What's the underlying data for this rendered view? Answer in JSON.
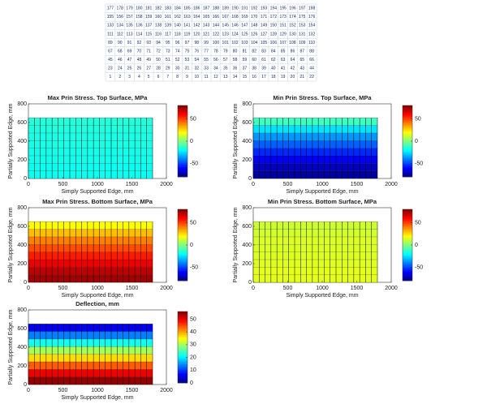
{
  "node_grid": {
    "rows": [
      [
        177,
        178,
        179,
        180,
        181,
        182,
        183,
        184,
        185,
        186,
        187,
        188,
        189,
        190,
        191,
        192,
        193,
        194,
        195,
        196,
        197,
        198
      ],
      [
        155,
        156,
        157,
        158,
        159,
        160,
        161,
        162,
        163,
        164,
        165,
        166,
        167,
        168,
        169,
        170,
        171,
        172,
        173,
        174,
        175,
        176
      ],
      [
        133,
        134,
        135,
        136,
        137,
        138,
        139,
        140,
        141,
        142,
        143,
        144,
        145,
        146,
        147,
        148,
        149,
        150,
        151,
        152,
        153,
        154
      ],
      [
        111,
        112,
        113,
        114,
        115,
        116,
        117,
        118,
        119,
        120,
        121,
        122,
        123,
        124,
        125,
        126,
        127,
        128,
        129,
        130,
        131,
        132
      ],
      [
        89,
        90,
        91,
        92,
        93,
        94,
        95,
        96,
        97,
        98,
        99,
        100,
        101,
        102,
        103,
        104,
        105,
        106,
        107,
        108,
        109,
        110
      ],
      [
        67,
        68,
        69,
        70,
        71,
        72,
        73,
        74,
        75,
        76,
        77,
        78,
        79,
        80,
        81,
        82,
        83,
        84,
        85,
        86,
        87,
        88
      ],
      [
        45,
        46,
        47,
        48,
        49,
        50,
        51,
        52,
        53,
        54,
        55,
        56,
        57,
        58,
        59,
        60,
        61,
        62,
        63,
        64,
        65,
        66
      ],
      [
        23,
        24,
        25,
        26,
        27,
        28,
        29,
        30,
        31,
        32,
        33,
        34,
        35,
        36,
        37,
        38,
        39,
        40,
        41,
        42,
        43,
        44
      ],
      [
        1,
        2,
        3,
        4,
        5,
        6,
        7,
        8,
        9,
        10,
        11,
        12,
        13,
        14,
        15,
        16,
        17,
        18,
        19,
        20,
        21,
        22
      ]
    ]
  },
  "chart_data": [
    {
      "type": "heatmap",
      "title": "Max Prin Stress. Top Surface, MPa",
      "xlabel": "Simply Supported Edge, mm",
      "ylabel": "Partially Supported Edge, mm",
      "xlim": [
        0,
        2000
      ],
      "xticks": [
        0,
        500,
        1000,
        1500,
        2000
      ],
      "ylim": [
        0,
        800
      ],
      "yticks": [
        0,
        200,
        400,
        600,
        800
      ],
      "extent_x": [
        0,
        1800
      ],
      "extent_y": [
        0,
        650
      ],
      "clim": [
        -80,
        80
      ],
      "cticks": [
        -50,
        0,
        50
      ],
      "values": [
        -18,
        -18,
        -17,
        -17,
        -16,
        -16,
        -15,
        -14
      ]
    },
    {
      "type": "heatmap",
      "title": "Min Prin Stress. Top Surface, MPa",
      "xlabel": "Simply Supported Edge, mm",
      "ylabel": "Partially Supported Edge, mm",
      "xlim": [
        0,
        2000
      ],
      "xticks": [
        0,
        500,
        1000,
        1500,
        2000
      ],
      "ylim": [
        0,
        800
      ],
      "yticks": [
        0,
        200,
        400,
        600,
        800
      ],
      "extent_x": [
        0,
        1800
      ],
      "extent_y": [
        0,
        650
      ],
      "clim": [
        -80,
        80
      ],
      "cticks": [
        -50,
        0,
        50
      ],
      "values": [
        -75,
        -70,
        -62,
        -54,
        -45,
        -36,
        -24,
        -10
      ]
    },
    {
      "type": "heatmap",
      "title": "Max Prin Stress. Bottom Surface, MPa",
      "xlabel": "Simply Supported Edge, mm",
      "ylabel": "Partially Supported Edge, mm",
      "xlim": [
        0,
        2000
      ],
      "xticks": [
        0,
        500,
        1000,
        1500,
        2000
      ],
      "ylim": [
        0,
        800
      ],
      "yticks": [
        0,
        200,
        400,
        600,
        800
      ],
      "extent_x": [
        0,
        1800
      ],
      "extent_y": [
        0,
        650
      ],
      "clim": [
        -80,
        80
      ],
      "cticks": [
        -50,
        0,
        50
      ],
      "values": [
        75,
        70,
        63,
        56,
        48,
        40,
        30,
        20
      ]
    },
    {
      "type": "heatmap",
      "title": "Min Prin Stress. Bottom Surface, MPa",
      "xlabel": "Simply Supported Edge, mm",
      "ylabel": "Partially Supported Edge, mm",
      "xlim": [
        0,
        2000
      ],
      "xticks": [
        0,
        500,
        1000,
        1500,
        2000
      ],
      "ylim": [
        0,
        800
      ],
      "yticks": [
        0,
        200,
        400,
        600,
        800
      ],
      "extent_x": [
        0,
        1800
      ],
      "extent_y": [
        0,
        650
      ],
      "clim": [
        -80,
        80
      ],
      "cticks": [
        -50,
        0,
        50
      ],
      "values": [
        16,
        16,
        15,
        15,
        14,
        14,
        13,
        12
      ]
    },
    {
      "type": "heatmap",
      "title": "Deflection, mm",
      "xlabel": "Simply Supported Edge, mm",
      "ylabel": "Partially Supported Edge, mm",
      "xlim": [
        0,
        2000
      ],
      "xticks": [
        0,
        500,
        1000,
        1500,
        2000
      ],
      "ylim": [
        0,
        800
      ],
      "yticks": [
        0,
        200,
        400,
        600,
        800
      ],
      "extent_x": [
        0,
        1800
      ],
      "extent_y": [
        0,
        650
      ],
      "clim": [
        0,
        56
      ],
      "cticks": [
        0,
        10,
        20,
        30,
        40,
        50
      ],
      "values": [
        55,
        50,
        44,
        37,
        30,
        22,
        14,
        6
      ]
    }
  ]
}
